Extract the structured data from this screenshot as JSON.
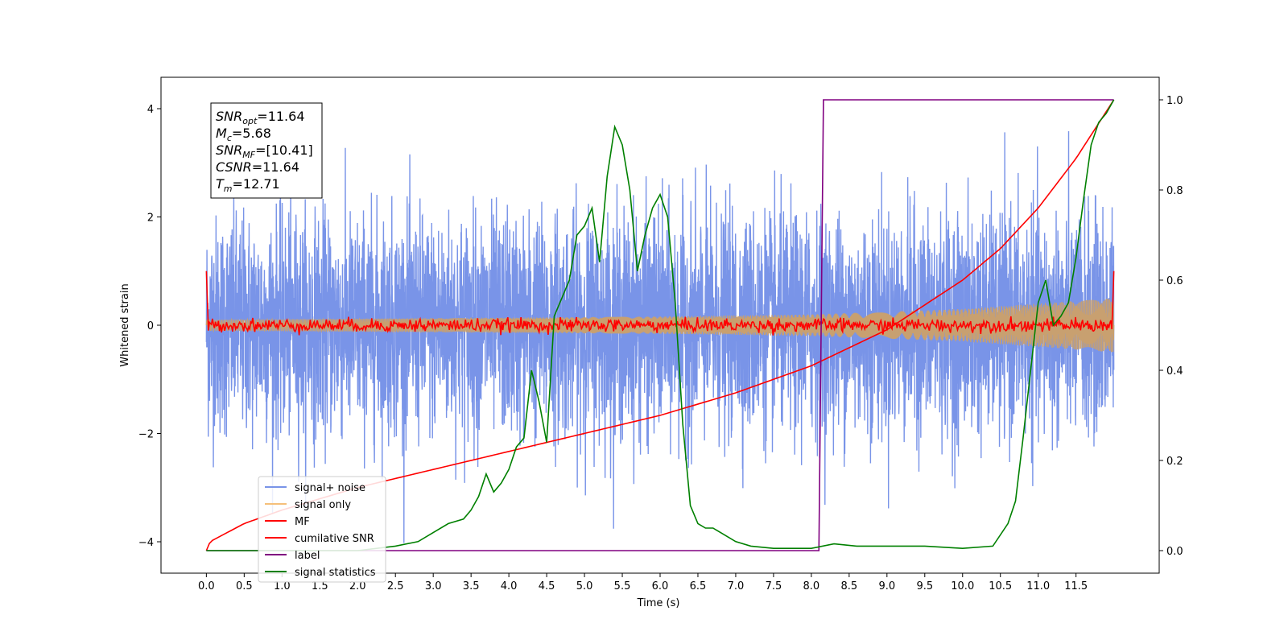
{
  "chart_data": {
    "type": "line",
    "xlabel": "Time (s)",
    "ylabel": "Whitened strain",
    "xlim": [
      -0.6,
      12.6
    ],
    "ylim": [
      -4.58,
      4.58
    ],
    "y2lim": [
      -0.05,
      1.05
    ],
    "x_ticks": [
      "0.0",
      "0.5",
      "1.0",
      "1.5",
      "2.0",
      "2.5",
      "3.0",
      "3.5",
      "4.0",
      "4.5",
      "5.0",
      "5.5",
      "6.0",
      "6.5",
      "7.0",
      "7.5",
      "8.0",
      "8.5",
      "9.0",
      "9.5",
      "10.0",
      "10.5",
      "11.0",
      "11.5"
    ],
    "y_ticks": [
      "4",
      "2",
      "0",
      "−2",
      "−4"
    ],
    "y2_ticks": [
      "1.0",
      "0.8",
      "0.6",
      "0.4",
      "0.2",
      "0.0"
    ],
    "legend": {
      "placement": "lower-left",
      "entries": [
        {
          "label": "signal+ noise",
          "color": "#7994e8"
        },
        {
          "label": "signal only",
          "color": "#f5c07a"
        },
        {
          "label": "MF",
          "color": "#ff0000"
        },
        {
          "label": "cumilative SNR",
          "color": "#ff0000"
        },
        {
          "label": "label",
          "color": "#800080"
        },
        {
          "label": "signal statistics",
          "color": "#008000"
        }
      ]
    },
    "annotation": [
      {
        "symbol": "SNR",
        "sub": "opt",
        "value": "=11.64"
      },
      {
        "symbol": "M",
        "sub": "c",
        "value": "=5.68"
      },
      {
        "symbol": "SNR",
        "sub": "MF",
        "value": "=[10.41]"
      },
      {
        "symbol": "CSNR",
        "sub": "",
        "value": "=11.64"
      },
      {
        "symbol": "T",
        "sub": "m",
        "value": "=12.71"
      }
    ],
    "series": [
      {
        "name": "signal+ noise",
        "axis": "left",
        "color": "#7994e8",
        "kind": "noise",
        "x_range": [
          0,
          12
        ],
        "std": 1.0,
        "peak": 4.15
      },
      {
        "name": "signal only",
        "axis": "left",
        "color": "#c8a070",
        "kind": "chirp_envelope",
        "x_range": [
          0,
          12
        ],
        "envelope": [
          [
            0,
            0.1
          ],
          [
            6,
            0.16
          ],
          [
            8,
            0.2
          ],
          [
            10,
            0.3
          ],
          [
            12,
            0.5
          ]
        ]
      },
      {
        "name": "MF",
        "axis": "left",
        "color": "#ff0000",
        "kind": "noise",
        "x_range": [
          0,
          12
        ],
        "std": 0.06,
        "start_value": 1.0,
        "end_value": 1.0
      },
      {
        "name": "cumilative SNR",
        "axis": "right",
        "color": "#ff0000",
        "x": [
          0,
          0.05,
          0.5,
          1,
          2,
          3,
          4,
          5,
          6,
          7,
          8,
          9,
          10,
          10.5,
          11,
          11.5,
          12
        ],
        "values": [
          0,
          0.02,
          0.06,
          0.09,
          0.14,
          0.18,
          0.22,
          0.26,
          0.3,
          0.35,
          0.41,
          0.49,
          0.6,
          0.67,
          0.76,
          0.87,
          1.0
        ]
      },
      {
        "name": "label",
        "axis": "right",
        "color": "#800080",
        "x": [
          0,
          8.1,
          8.16,
          12
        ],
        "values": [
          0,
          0,
          1.0,
          1.0
        ]
      },
      {
        "name": "signal statistics",
        "axis": "right",
        "color": "#008000",
        "x": [
          0,
          0.5,
          1,
          1.5,
          2,
          2.5,
          2.8,
          3,
          3.2,
          3.4,
          3.5,
          3.6,
          3.7,
          3.8,
          3.9,
          4.0,
          4.1,
          4.2,
          4.3,
          4.4,
          4.5,
          4.6,
          4.7,
          4.8,
          4.9,
          5.0,
          5.1,
          5.2,
          5.3,
          5.4,
          5.5,
          5.6,
          5.7,
          5.8,
          5.9,
          6.0,
          6.1,
          6.2,
          6.3,
          6.4,
          6.5,
          6.6,
          6.7,
          6.8,
          6.9,
          7.0,
          7.2,
          7.5,
          8.0,
          8.3,
          8.6,
          9.0,
          9.5,
          10.0,
          10.4,
          10.6,
          10.7,
          10.8,
          10.9,
          11.0,
          11.1,
          11.2,
          11.3,
          11.4,
          11.5,
          11.6,
          11.7,
          11.8,
          11.9,
          12.0
        ],
        "values": [
          0,
          0,
          0.0,
          0.0,
          0.0,
          0.01,
          0.02,
          0.04,
          0.06,
          0.07,
          0.09,
          0.12,
          0.17,
          0.13,
          0.15,
          0.18,
          0.23,
          0.25,
          0.4,
          0.33,
          0.24,
          0.52,
          0.56,
          0.6,
          0.7,
          0.72,
          0.76,
          0.64,
          0.83,
          0.94,
          0.9,
          0.8,
          0.62,
          0.7,
          0.76,
          0.79,
          0.74,
          0.55,
          0.28,
          0.1,
          0.06,
          0.05,
          0.05,
          0.04,
          0.03,
          0.02,
          0.01,
          0.005,
          0.005,
          0.015,
          0.01,
          0.01,
          0.01,
          0.005,
          0.01,
          0.06,
          0.11,
          0.25,
          0.4,
          0.55,
          0.6,
          0.5,
          0.52,
          0.55,
          0.65,
          0.78,
          0.9,
          0.95,
          0.97,
          1.0
        ]
      }
    ]
  }
}
